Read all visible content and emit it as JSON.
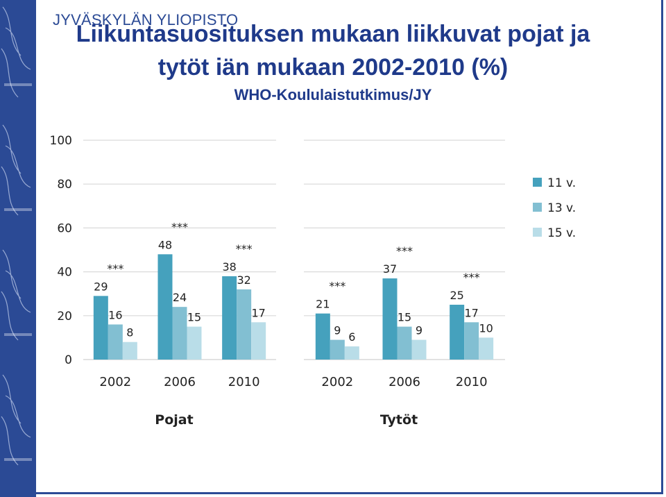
{
  "header": {
    "university": "JYVÄSKYLÄN YLIOPISTO",
    "title_line1": "Liikuntasuosituksen mukaan liikkuvat pojat ja",
    "title_line2": "tytöt iän mukaan 2002-2010 (%)",
    "subtitle": "WHO-Koululaistutkimus/JY"
  },
  "colors": {
    "brand": "#2b4a95",
    "title": "#1f3a8a",
    "series": [
      "#45a1bd",
      "#82bfd2",
      "#b9dde8"
    ],
    "grid": "#d9d9d9"
  },
  "chart_data": {
    "type": "bar",
    "ylim": [
      0,
      100
    ],
    "yticks": [
      0,
      20,
      40,
      60,
      80,
      100
    ],
    "grid": true,
    "legend_position": "right",
    "series_names": [
      "11 v.",
      "13 v.",
      "15 v."
    ],
    "groups": [
      {
        "name": "Pojat",
        "categories": [
          "2002",
          "2006",
          "2010"
        ],
        "values": [
          [
            29,
            16,
            8
          ],
          [
            48,
            24,
            15
          ],
          [
            38,
            32,
            17
          ]
        ],
        "significance": [
          "***",
          "***",
          "***"
        ]
      },
      {
        "name": "Tytöt",
        "categories": [
          "2002",
          "2006",
          "2010"
        ],
        "values": [
          [
            21,
            9,
            6
          ],
          [
            37,
            15,
            9
          ],
          [
            25,
            17,
            10
          ]
        ],
        "significance": [
          "***",
          "***",
          "***"
        ]
      }
    ]
  }
}
